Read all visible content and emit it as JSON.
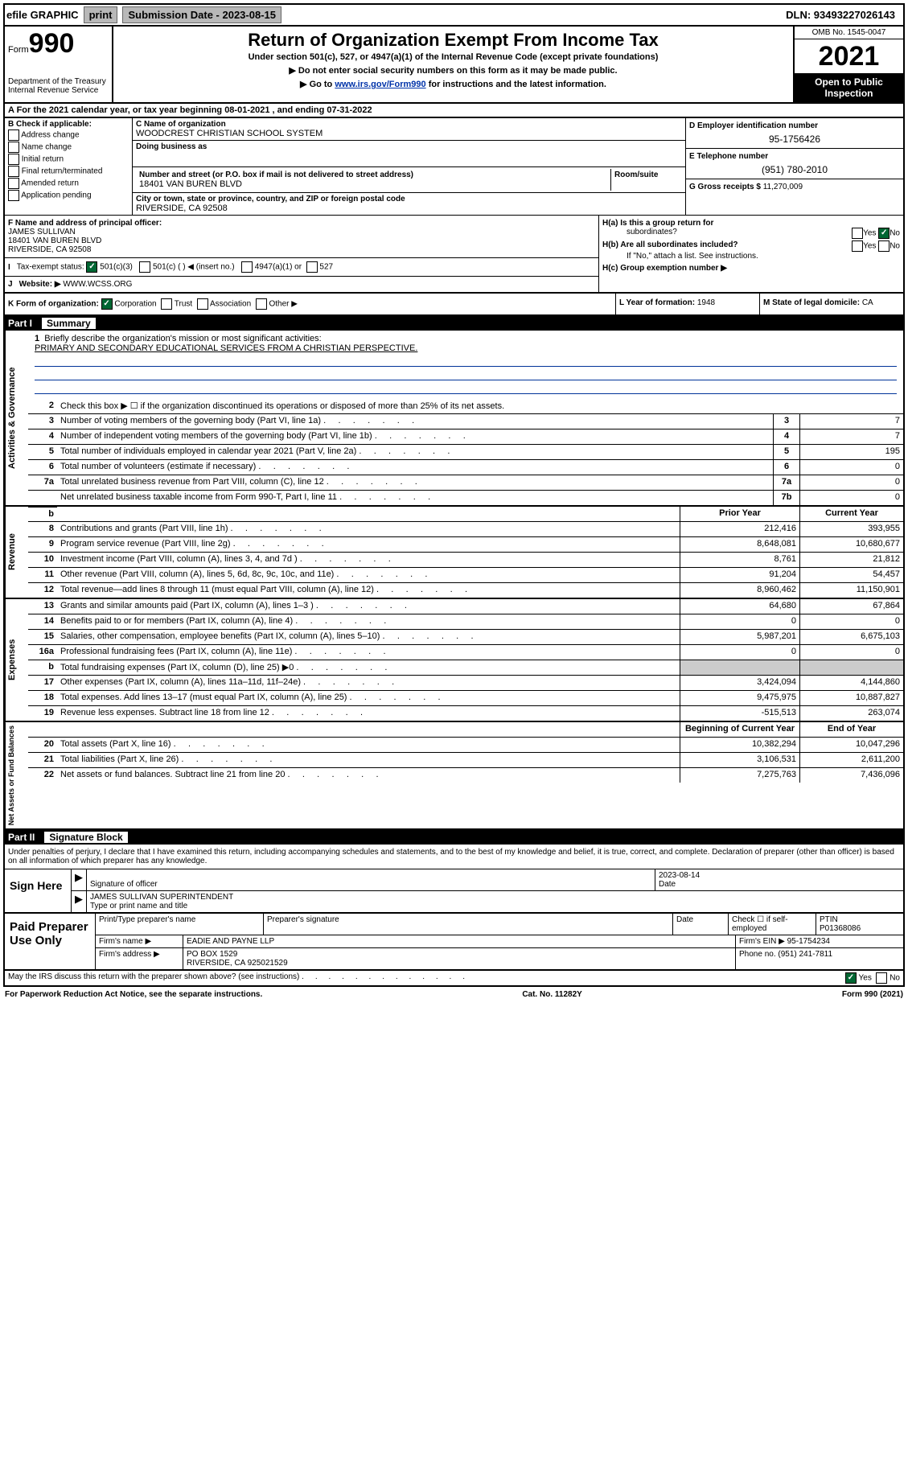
{
  "topbar": {
    "efile": "efile GRAPHIC",
    "print": "print",
    "sub_label": "Submission Date - 2023-08-15",
    "dln": "DLN: 93493227026143"
  },
  "header": {
    "form_label": "Form",
    "form_num": "990",
    "dept": "Department of the Treasury",
    "irs": "Internal Revenue Service",
    "title": "Return of Organization Exempt From Income Tax",
    "subtitle": "Under section 501(c), 527, or 4947(a)(1) of the Internal Revenue Code (except private foundations)",
    "line1": "▶ Do not enter social security numbers on this form as it may be made public.",
    "line2_pre": "▶ Go to ",
    "line2_link": "www.irs.gov/Form990",
    "line2_post": " for instructions and the latest information.",
    "omb": "OMB No. 1545-0047",
    "year": "2021",
    "open": "Open to Public Inspection"
  },
  "row_a": "A For the 2021 calendar year, or tax year beginning 08-01-2021   , and ending 07-31-2022",
  "section_b": {
    "label": "B Check if applicable:",
    "opts": [
      "Address change",
      "Name change",
      "Initial return",
      "Final return/terminated",
      "Amended return",
      "Application pending"
    ],
    "c_label": "C Name of organization",
    "c_name": "WOODCREST CHRISTIAN SCHOOL SYSTEM",
    "dba_label": "Doing business as",
    "dba": "",
    "addr_label": "Number and street (or P.O. box if mail is not delivered to street address)",
    "room_label": "Room/suite",
    "addr": "18401 VAN BUREN BLVD",
    "city_label": "City or town, state or province, country, and ZIP or foreign postal code",
    "city": "RIVERSIDE, CA  92508",
    "d_label": "D Employer identification number",
    "d_val": "95-1756426",
    "e_label": "E Telephone number",
    "e_val": "(951) 780-2010",
    "g_label": "G Gross receipts $",
    "g_val": "11,270,009"
  },
  "section_f": {
    "f_label": "F Name and address of principal officer:",
    "f_name": "JAMES SULLIVAN",
    "f_addr1": "18401 VAN BUREN BLVD",
    "f_addr2": "RIVERSIDE, CA  92508",
    "i_label": "Tax-exempt status:",
    "i_501c3": "501(c)(3)",
    "i_501c": "501(c) (   ) ◀ (insert no.)",
    "i_4947": "4947(a)(1) or",
    "i_527": "527",
    "j_label": "Website: ▶",
    "j_val": "WWW.WCSS.ORG",
    "ha_label": "H(a)  Is this a group return for",
    "ha_sub": "subordinates?",
    "hb_label": "H(b)  Are all subordinates included?",
    "hb_note": "If \"No,\" attach a list. See instructions.",
    "hc_label": "H(c)  Group exemption number ▶",
    "yes": "Yes",
    "no": "No"
  },
  "section_k": {
    "k_label": "K Form of organization:",
    "k_corp": "Corporation",
    "k_trust": "Trust",
    "k_assoc": "Association",
    "k_other": "Other ▶",
    "l_label": "L Year of formation: ",
    "l_val": "1948",
    "m_label": "M State of legal domicile: ",
    "m_val": "CA"
  },
  "part1": {
    "label": "Part I",
    "title": "Summary"
  },
  "governance": {
    "side": "Activities & Governance",
    "q1": "Briefly describe the organization's mission or most significant activities:",
    "q1_val": "PRIMARY AND SECONDARY EDUCATIONAL SERVICES FROM A CHRISTIAN PERSPECTIVE.",
    "q2": "Check this box ▶ ☐ if the organization discontinued its operations or disposed of more than 25% of its net assets.",
    "rows": [
      {
        "n": "3",
        "d": "Number of voting members of the governing body (Part VI, line 1a)",
        "b": "3",
        "v": "7"
      },
      {
        "n": "4",
        "d": "Number of independent voting members of the governing body (Part VI, line 1b)",
        "b": "4",
        "v": "7"
      },
      {
        "n": "5",
        "d": "Total number of individuals employed in calendar year 2021 (Part V, line 2a)",
        "b": "5",
        "v": "195"
      },
      {
        "n": "6",
        "d": "Total number of volunteers (estimate if necessary)",
        "b": "6",
        "v": "0"
      },
      {
        "n": "7a",
        "d": "Total unrelated business revenue from Part VIII, column (C), line 12",
        "b": "7a",
        "v": "0"
      },
      {
        "n": "",
        "d": "Net unrelated business taxable income from Form 990-T, Part I, line 11",
        "b": "7b",
        "v": "0"
      }
    ]
  },
  "revenue": {
    "side": "Revenue",
    "header_prior": "Prior Year",
    "header_current": "Current Year",
    "rows": [
      {
        "n": "8",
        "d": "Contributions and grants (Part VIII, line 1h)",
        "p": "212,416",
        "c": "393,955"
      },
      {
        "n": "9",
        "d": "Program service revenue (Part VIII, line 2g)",
        "p": "8,648,081",
        "c": "10,680,677"
      },
      {
        "n": "10",
        "d": "Investment income (Part VIII, column (A), lines 3, 4, and 7d )",
        "p": "8,761",
        "c": "21,812"
      },
      {
        "n": "11",
        "d": "Other revenue (Part VIII, column (A), lines 5, 6d, 8c, 9c, 10c, and 11e)",
        "p": "91,204",
        "c": "54,457"
      },
      {
        "n": "12",
        "d": "Total revenue—add lines 8 through 11 (must equal Part VIII, column (A), line 12)",
        "p": "8,960,462",
        "c": "11,150,901"
      }
    ]
  },
  "expenses": {
    "side": "Expenses",
    "rows": [
      {
        "n": "13",
        "d": "Grants and similar amounts paid (Part IX, column (A), lines 1–3 )",
        "p": "64,680",
        "c": "67,864"
      },
      {
        "n": "14",
        "d": "Benefits paid to or for members (Part IX, column (A), line 4)",
        "p": "0",
        "c": "0"
      },
      {
        "n": "15",
        "d": "Salaries, other compensation, employee benefits (Part IX, column (A), lines 5–10)",
        "p": "5,987,201",
        "c": "6,675,103"
      },
      {
        "n": "16a",
        "d": "Professional fundraising fees (Part IX, column (A), line 11e)",
        "p": "0",
        "c": "0"
      },
      {
        "n": "b",
        "d": "Total fundraising expenses (Part IX, column (D), line 25) ▶0",
        "p": "",
        "c": "",
        "gray": true
      },
      {
        "n": "17",
        "d": "Other expenses (Part IX, column (A), lines 11a–11d, 11f–24e)",
        "p": "3,424,094",
        "c": "4,144,860"
      },
      {
        "n": "18",
        "d": "Total expenses. Add lines 13–17 (must equal Part IX, column (A), line 25)",
        "p": "9,475,975",
        "c": "10,887,827"
      },
      {
        "n": "19",
        "d": "Revenue less expenses. Subtract line 18 from line 12",
        "p": "-515,513",
        "c": "263,074"
      }
    ]
  },
  "netassets": {
    "side": "Net Assets or Fund Balances",
    "header_begin": "Beginning of Current Year",
    "header_end": "End of Year",
    "rows": [
      {
        "n": "20",
        "d": "Total assets (Part X, line 16)",
        "p": "10,382,294",
        "c": "10,047,296"
      },
      {
        "n": "21",
        "d": "Total liabilities (Part X, line 26)",
        "p": "3,106,531",
        "c": "2,611,200"
      },
      {
        "n": "22",
        "d": "Net assets or fund balances. Subtract line 21 from line 20",
        "p": "7,275,763",
        "c": "7,436,096"
      }
    ]
  },
  "part2": {
    "label": "Part II",
    "title": "Signature Block"
  },
  "sig": {
    "intro": "Under penalties of perjury, I declare that I have examined this return, including accompanying schedules and statements, and to the best of my knowledge and belief, it is true, correct, and complete. Declaration of preparer (other than officer) is based on all information of which preparer has any knowledge.",
    "sign_here": "Sign Here",
    "sig_officer": "Signature of officer",
    "date_label": "Date",
    "date_val": "2023-08-14",
    "name_title": "JAMES SULLIVAN  SUPERINTENDENT",
    "name_label": "Type or print name and title"
  },
  "prep": {
    "label": "Paid Preparer Use Only",
    "h_name": "Print/Type preparer's name",
    "h_sig": "Preparer's signature",
    "h_date": "Date",
    "h_check": "Check ☐ if self-employed",
    "h_ptin": "PTIN",
    "ptin": "P01368086",
    "firm_name_label": "Firm's name    ▶",
    "firm_name": "EADIE AND PAYNE LLP",
    "firm_ein_label": "Firm's EIN ▶",
    "firm_ein": "95-1754234",
    "firm_addr_label": "Firm's address ▶",
    "firm_addr1": "PO BOX 1529",
    "firm_addr2": "RIVERSIDE, CA  925021529",
    "phone_label": "Phone no.",
    "phone": "(951) 241-7811"
  },
  "footer": {
    "discuss": "May the IRS discuss this return with the preparer shown above? (see instructions)",
    "yes": "Yes",
    "no": "No",
    "paperwork": "For Paperwork Reduction Act Notice, see the separate instructions.",
    "cat": "Cat. No. 11282Y",
    "form": "Form 990 (2021)"
  }
}
